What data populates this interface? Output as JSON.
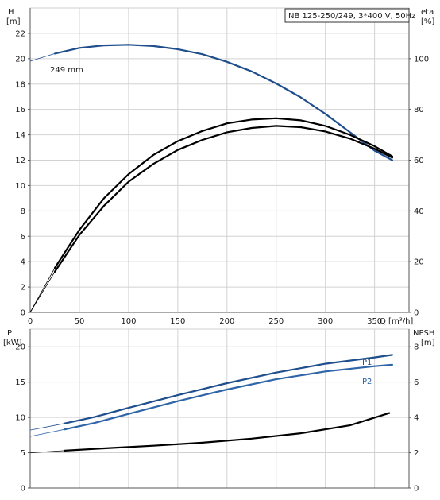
{
  "chart_data": [
    {
      "type": "line",
      "title": "NB 125-250/249, 3*400 V, 50Hz",
      "y_left_label_top": "H",
      "y_left_label_bottom": "[m]",
      "y_right_label_top": "eta",
      "y_right_label_bottom": "[%]",
      "xlabel": "Q [m³/h]",
      "xlim": [
        0,
        385
      ],
      "ylim_left": [
        0,
        24
      ],
      "ylim_right": [
        0,
        120
      ],
      "x_ticks": [
        "0",
        "50",
        "100",
        "150",
        "200",
        "250",
        "300",
        "350"
      ],
      "y_left_ticks": [
        "0",
        "2",
        "4",
        "6",
        "8",
        "10",
        "12",
        "14",
        "16",
        "18",
        "20",
        "22"
      ],
      "y_right_ticks": [
        "0",
        "20",
        "40",
        "60",
        "80",
        "100"
      ],
      "grid": true,
      "annotation": "249 mm",
      "series": [
        {
          "name": "249 mm",
          "axis": "left",
          "color": "#1f4e8c",
          "points": [
            [
              0,
              19.8
            ],
            [
              25,
              20.4
            ],
            [
              50,
              20.85
            ],
            [
              75,
              21.05
            ],
            [
              100,
              21.1
            ],
            [
              125,
              21.0
            ],
            [
              150,
              20.75
            ],
            [
              175,
              20.35
            ],
            [
              200,
              19.75
            ],
            [
              225,
              19.0
            ],
            [
              250,
              18.05
            ],
            [
              275,
              16.95
            ],
            [
              300,
              15.65
            ],
            [
              325,
              14.2
            ],
            [
              350,
              12.75
            ],
            [
              368,
              12.0
            ]
          ]
        },
        {
          "axis": "right",
          "color": "#000000",
          "points": [
            [
              0,
              0
            ],
            [
              25,
              17.5
            ],
            [
              50,
              32.5
            ],
            [
              75,
              45
            ],
            [
              100,
              54.5
            ],
            [
              125,
              62
            ],
            [
              150,
              67.5
            ],
            [
              175,
              71.5
            ],
            [
              200,
              74.5
            ],
            [
              225,
              76
            ],
            [
              250,
              76.5
            ],
            [
              275,
              75.7
            ],
            [
              300,
              73.5
            ],
            [
              325,
              70
            ],
            [
              350,
              65.5
            ],
            [
              368,
              61.5
            ]
          ]
        },
        {
          "axis": "right",
          "color": "#000000",
          "points": [
            [
              0,
              0
            ],
            [
              25,
              16
            ],
            [
              50,
              30.5
            ],
            [
              75,
              42
            ],
            [
              100,
              51.5
            ],
            [
              125,
              58.5
            ],
            [
              150,
              64
            ],
            [
              175,
              68
            ],
            [
              200,
              71
            ],
            [
              225,
              72.7
            ],
            [
              250,
              73.5
            ],
            [
              275,
              73
            ],
            [
              300,
              71.3
            ],
            [
              325,
              68.5
            ],
            [
              350,
              64.5
            ],
            [
              368,
              61
            ]
          ]
        }
      ]
    },
    {
      "type": "line",
      "y_left_label_top": "P",
      "y_left_label_bottom": "[kW]",
      "y_right_label_top": "NPSH",
      "y_right_label_bottom": "[m]",
      "xlim": [
        0,
        385
      ],
      "ylim_left": [
        0,
        22.5
      ],
      "ylim_right": [
        0,
        9
      ],
      "y_left_ticks": [
        "0",
        "5",
        "10",
        "15",
        "20"
      ],
      "y_right_ticks": [
        "0",
        "2",
        "4",
        "6",
        "8"
      ],
      "grid": true,
      "series": [
        {
          "name": "P1",
          "axis": "left",
          "color": "#1f4e8c",
          "points": [
            [
              0,
              8.2
            ],
            [
              35,
              9.15
            ],
            [
              65,
              10.05
            ],
            [
              100,
              11.35
            ],
            [
              150,
              13.15
            ],
            [
              200,
              14.85
            ],
            [
              250,
              16.35
            ],
            [
              300,
              17.6
            ],
            [
              350,
              18.5
            ],
            [
              368,
              18.85
            ]
          ]
        },
        {
          "name": "P2",
          "axis": "left",
          "color": "#2e64a8",
          "points": [
            [
              0,
              7.3
            ],
            [
              35,
              8.3
            ],
            [
              65,
              9.2
            ],
            [
              100,
              10.5
            ],
            [
              150,
              12.3
            ],
            [
              200,
              13.95
            ],
            [
              250,
              15.4
            ],
            [
              300,
              16.5
            ],
            [
              350,
              17.25
            ],
            [
              368,
              17.45
            ]
          ]
        },
        {
          "axis": "right",
          "color": "#000000",
          "points": [
            [
              0,
              2.0
            ],
            [
              35,
              2.12
            ],
            [
              75,
              2.25
            ],
            [
              125,
              2.4
            ],
            [
              175,
              2.57
            ],
            [
              225,
              2.8
            ],
            [
              275,
              3.1
            ],
            [
              325,
              3.55
            ],
            [
              365,
              4.25
            ]
          ]
        }
      ]
    }
  ]
}
